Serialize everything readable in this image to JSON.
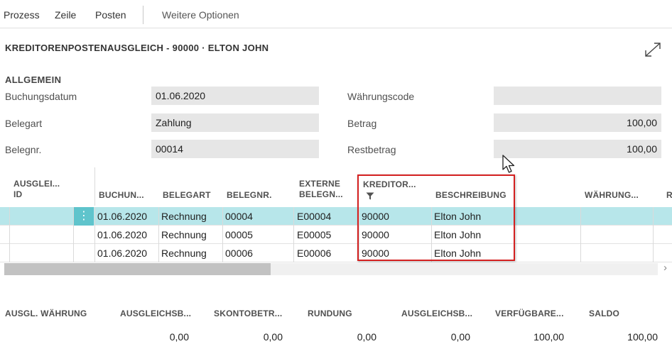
{
  "menu": {
    "items": [
      "Prozess",
      "Zeile",
      "Posten"
    ],
    "more": "Weitere Optionen"
  },
  "page": {
    "title": "KREDITORENPOSTENAUSGLEICH - 90000 · ELTON JOHN"
  },
  "general": {
    "section_title": "ALLGEMEIN",
    "buchungsdatum_label": "Buchungsdatum",
    "buchungsdatum_value": "01.06.2020",
    "belegart_label": "Belegart",
    "belegart_value": "Zahlung",
    "belegnr_label": "Belegnr.",
    "belegnr_value": "00014",
    "waehrungscode_label": "Währungscode",
    "waehrungscode_value": "",
    "betrag_label": "Betrag",
    "betrag_value": "100,00",
    "restbetrag_label": "Restbetrag",
    "restbetrag_value": "100,00"
  },
  "grid": {
    "headers": {
      "ausgleich_id_1": "AUSGLEI...",
      "ausgleich_id_2": "ID",
      "buchung": "BUCHUN...",
      "belegart": "BELEGART",
      "belegnr": "BELEGNR.",
      "externe_1": "EXTERNE",
      "externe_2": "BELEGN...",
      "kreditor": "KREDITOR...",
      "beschreibung": "BESCHREIBUNG",
      "waehrung": "WÄHRUNG...",
      "cut": "R"
    },
    "rows": [
      {
        "date": "01.06.2020",
        "belegart": "Rechnung",
        "belegnr": "00004",
        "extern": "E00004",
        "kreditor": "90000",
        "beschreibung": "Elton John",
        "selected": true
      },
      {
        "date": "01.06.2020",
        "belegart": "Rechnung",
        "belegnr": "00005",
        "extern": "E00005",
        "kreditor": "90000",
        "beschreibung": "Elton John",
        "selected": false
      },
      {
        "date": "01.06.2020",
        "belegart": "Rechnung",
        "belegnr": "00006",
        "extern": "E00006",
        "kreditor": "90000",
        "beschreibung": "Elton John",
        "selected": false
      }
    ],
    "row_menu_glyph": "⋮",
    "scroll_right_glyph": "›"
  },
  "footer": {
    "headers": [
      "AUSGL. WÄHRUNG",
      "AUSGLEICHSB...",
      "SKONTOBETR...",
      "RUNDUNG",
      "AUSGLEICHSB...",
      "VERFÜGBARE...",
      "SALDO"
    ],
    "values": [
      "",
      "0,00",
      "0,00",
      "0,00",
      "0,00",
      "100,00",
      "100,00"
    ]
  },
  "colors": {
    "selected_row": "#b7e6ea",
    "highlight_border": "#d42020",
    "field_bg": "#e6e6e6"
  },
  "icons": {
    "expand": "expand-icon",
    "filter": "filter-icon",
    "row_menu": "more-vertical-icon",
    "cursor": "mouse-pointer-icon"
  }
}
